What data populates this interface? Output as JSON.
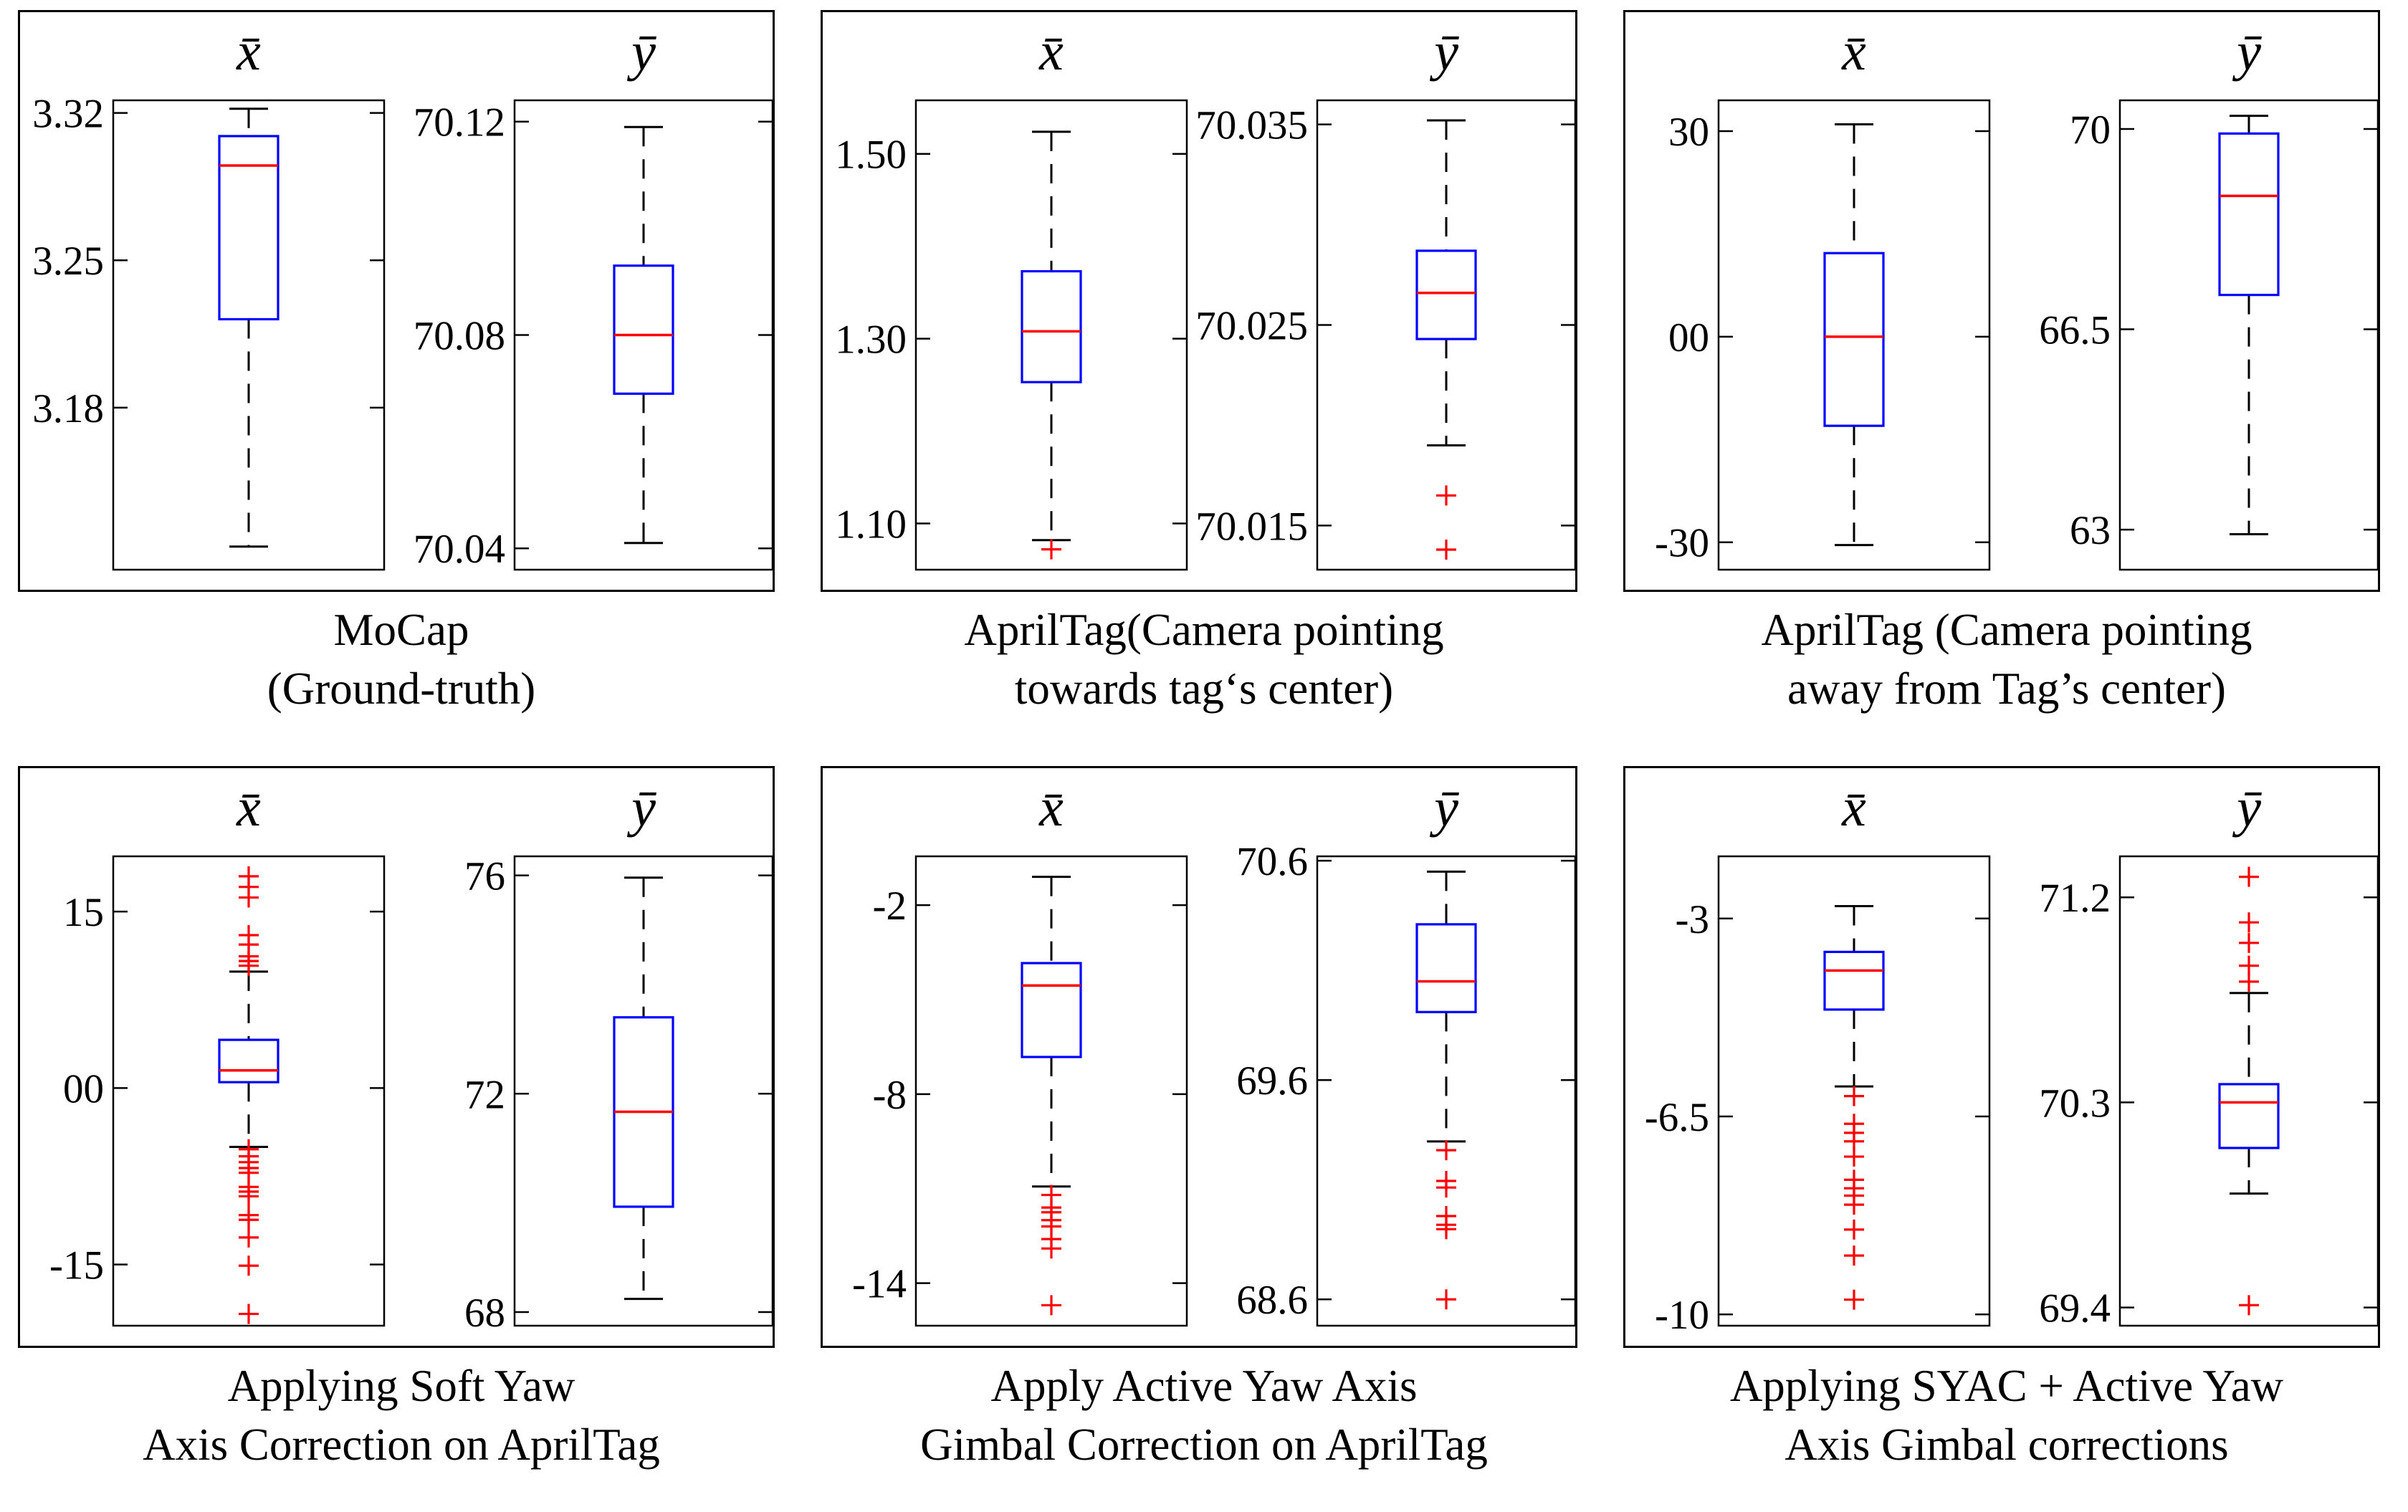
{
  "page": {
    "background": "#ffffff"
  },
  "chart_data": {
    "type": "boxplot-grid",
    "rows": 2,
    "cols": 3,
    "colors": {
      "frame": "#000000",
      "box": "#0000ff",
      "median": "#ff0000",
      "whisker": "#000000",
      "outlier": "#ff0000",
      "text": "#000000"
    },
    "panels": [
      {
        "caption_line1": "MoCap",
        "caption_line2": "(Ground-truth)",
        "plots": [
          {
            "label": "x̄",
            "ticks": [
              {
                "v": 3.32,
                "t": "3.32"
              },
              {
                "v": 3.25,
                "t": "3.25"
              },
              {
                "v": 3.18,
                "t": "3.18"
              }
            ],
            "range": [
              3.103,
              3.326
            ],
            "box": {
              "wlow": 3.114,
              "q1": 3.222,
              "med": 3.295,
              "q3": 3.309,
              "whigh": 3.322
            },
            "outliers": []
          },
          {
            "label": "ȳ",
            "ticks": [
              {
                "v": 70.12,
                "t": "70.12"
              },
              {
                "v": 70.08,
                "t": "70.08"
              },
              {
                "v": 70.04,
                "t": "70.04"
              }
            ],
            "range": [
              70.036,
              70.124
            ],
            "box": {
              "wlow": 70.041,
              "q1": 70.069,
              "med": 70.08,
              "q3": 70.093,
              "whigh": 70.119
            },
            "outliers": []
          }
        ]
      },
      {
        "caption_line1": "AprilTag(Camera pointing",
        "caption_line2": "towards tag‘s center)",
        "plots": [
          {
            "label": "x̄",
            "ticks": [
              {
                "v": 1.5,
                "t": "1.50"
              },
              {
                "v": 1.3,
                "t": "1.30"
              },
              {
                "v": 1.1,
                "t": "1.10"
              }
            ],
            "range": [
              1.05,
              1.558
            ],
            "box": {
              "wlow": 1.082,
              "q1": 1.253,
              "med": 1.308,
              "q3": 1.373,
              "whigh": 1.524
            },
            "outliers": [
              1.072
            ]
          },
          {
            "label": "ȳ",
            "ticks": [
              {
                "v": 70.035,
                "t": "70.035"
              },
              {
                "v": 70.025,
                "t": "70.025"
              },
              {
                "v": 70.015,
                "t": "70.015"
              }
            ],
            "range": [
              70.0128,
              70.0362
            ],
            "box": {
              "wlow": 70.019,
              "q1": 70.0243,
              "med": 70.0266,
              "q3": 70.0287,
              "whigh": 70.0352
            },
            "outliers": [
              70.0165,
              70.0138
            ]
          }
        ]
      },
      {
        "caption_line1": "AprilTag (Camera pointing",
        "caption_line2": "away from Tag’s center)",
        "plots": [
          {
            "label": "x̄",
            "ticks": [
              {
                "v": 30,
                "t": "30"
              },
              {
                "v": 0,
                "t": "00"
              },
              {
                "v": -30,
                "t": "-30"
              }
            ],
            "range": [
              -34,
              34.5
            ],
            "box": {
              "wlow": -30.4,
              "q1": -13.0,
              "med": 0.0,
              "q3": 12.2,
              "whigh": 31.0
            },
            "outliers": []
          },
          {
            "label": "ȳ",
            "ticks": [
              {
                "v": 70,
                "t": "70"
              },
              {
                "v": 66.5,
                "t": "66.5"
              },
              {
                "v": 63,
                "t": "63"
              }
            ],
            "range": [
              62.3,
              70.5
            ],
            "box": {
              "wlow": 62.92,
              "q1": 67.1,
              "med": 68.83,
              "q3": 69.92,
              "whigh": 70.23
            },
            "outliers": []
          }
        ]
      },
      {
        "caption_line1": "Applying Soft Yaw",
        "caption_line2": "Axis Correction on AprilTag",
        "plots": [
          {
            "label": "x̄",
            "ticks": [
              {
                "v": 15,
                "t": "15"
              },
              {
                "v": 0,
                "t": "00"
              },
              {
                "v": -15,
                "t": "-15"
              }
            ],
            "range": [
              -20.2,
              19.7
            ],
            "box": {
              "wlow": -5.0,
              "q1": 0.5,
              "med": 1.5,
              "q3": 4.1,
              "whigh": 9.9
            },
            "outliers": [
              18.0,
              17.1,
              16.2,
              13.0,
              12.2,
              11.2,
              10.8,
              10.4,
              -5.2,
              -5.8,
              -6.3,
              -6.8,
              -7.2,
              -8.4,
              -8.8,
              -9.2,
              -10.8,
              -11.2,
              -12.7,
              -15.1,
              -19.2
            ]
          },
          {
            "label": "ȳ",
            "ticks": [
              {
                "v": 76,
                "t": "76"
              },
              {
                "v": 72,
                "t": "72"
              },
              {
                "v": 68,
                "t": "68"
              }
            ],
            "range": [
              67.75,
              76.35
            ],
            "box": {
              "wlow": 68.24,
              "q1": 69.93,
              "med": 71.67,
              "q3": 73.4,
              "whigh": 75.96
            },
            "outliers": []
          }
        ]
      },
      {
        "caption_line1": "Apply Active Yaw Axis",
        "caption_line2": "Gimbal Correction on AprilTag",
        "plots": [
          {
            "label": "x̄",
            "ticks": [
              {
                "v": -2,
                "t": "-2"
              },
              {
                "v": -8,
                "t": "-8"
              },
              {
                "v": -14,
                "t": "-14"
              }
            ],
            "range": [
              -15.35,
              -0.45
            ],
            "box": {
              "wlow": -10.93,
              "q1": -6.82,
              "med": -4.55,
              "q3": -3.84,
              "whigh": -1.1
            },
            "outliers": [
              -11.2,
              -11.6,
              -11.75,
              -12.0,
              -12.2,
              -12.6,
              -12.9,
              -14.7
            ]
          },
          {
            "label": "ȳ",
            "ticks": [
              {
                "v": 70.6,
                "t": "70.6"
              },
              {
                "v": 69.6,
                "t": "69.6"
              },
              {
                "v": 68.6,
                "t": "68.6"
              }
            ],
            "range": [
              68.48,
              70.62
            ],
            "box": {
              "wlow": 69.32,
              "q1": 69.91,
              "med": 70.05,
              "q3": 70.31,
              "whigh": 70.55
            },
            "outliers": [
              69.28,
              69.14,
              69.11,
              68.98,
              68.94,
              68.92,
              68.6
            ]
          }
        ]
      },
      {
        "caption_line1": "Applying SYAC + Active Yaw",
        "caption_line2": "Axis Gimbal corrections",
        "plots": [
          {
            "label": "x̄",
            "ticks": [
              {
                "v": -3,
                "t": "-3"
              },
              {
                "v": -6.5,
                "t": "-6.5"
              },
              {
                "v": -10,
                "t": "-10"
              }
            ],
            "range": [
              -10.2,
              -1.9
            ],
            "box": {
              "wlow": -5.97,
              "q1": -4.61,
              "med": -3.92,
              "q3": -3.59,
              "whigh": -2.78
            },
            "outliers": [
              -6.14,
              -6.63,
              -6.79,
              -6.94,
              -7.21,
              -7.62,
              -7.77,
              -7.9,
              -8.06,
              -8.5,
              -8.96,
              -9.74
            ]
          },
          {
            "label": "ȳ",
            "ticks": [
              {
                "v": 71.2,
                "t": "71.2"
              },
              {
                "v": 70.3,
                "t": "70.3"
              },
              {
                "v": 69.4,
                "t": "69.4"
              }
            ],
            "range": [
              69.32,
              71.38
            ],
            "box": {
              "wlow": 69.9,
              "q1": 70.1,
              "med": 70.3,
              "q3": 70.38,
              "whigh": 70.78
            },
            "outliers": [
              71.29,
              71.09,
              71.0,
              70.9,
              70.83,
              69.41
            ]
          }
        ]
      }
    ]
  }
}
